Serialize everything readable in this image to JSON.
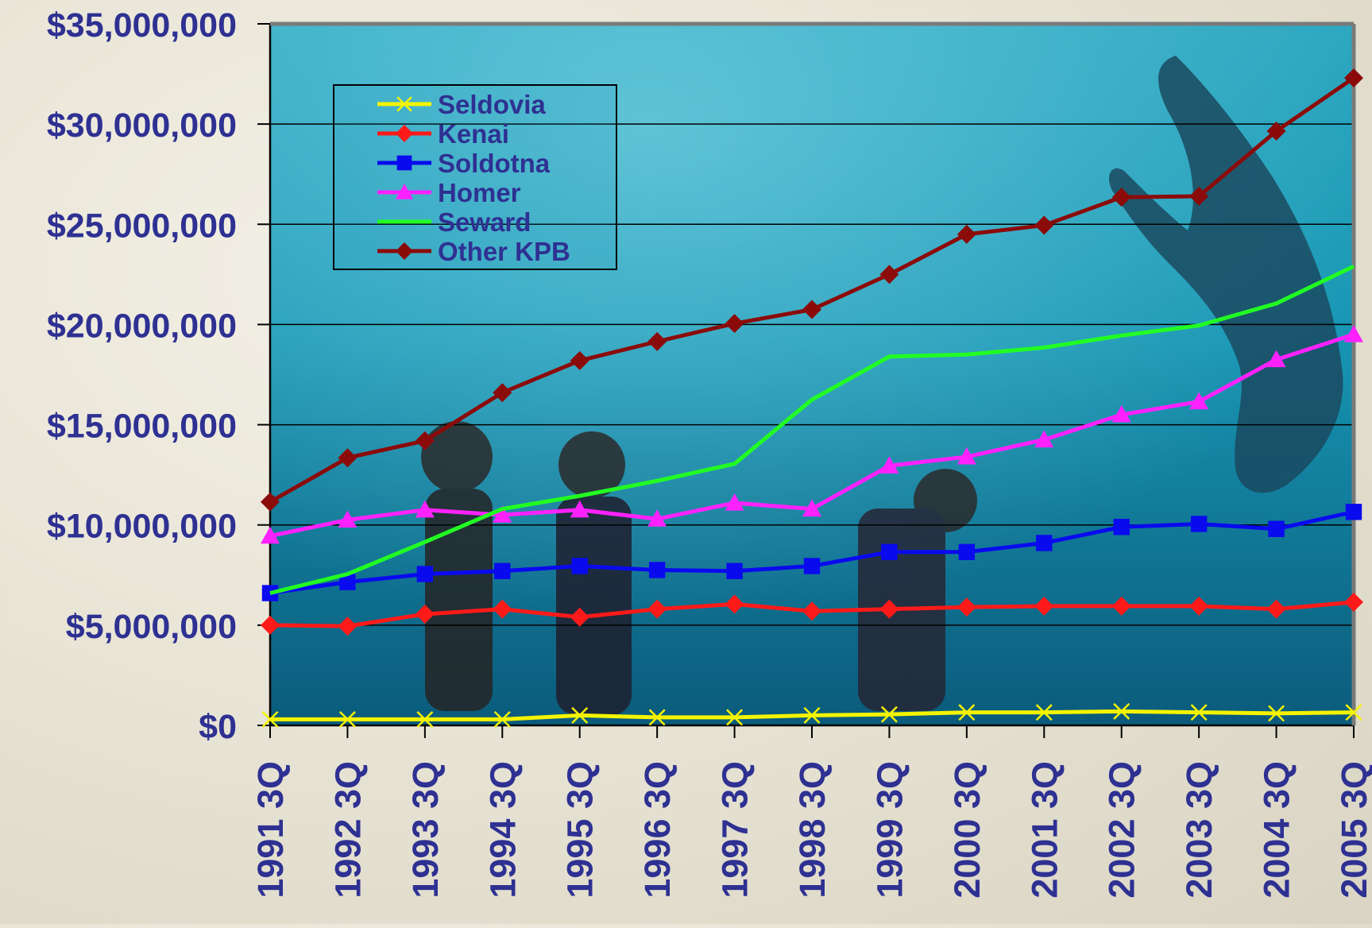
{
  "chart_data": {
    "type": "line",
    "title": "",
    "xlabel": "",
    "ylabel": "",
    "ylim": [
      0,
      35000000
    ],
    "y_ticks": [
      0,
      5000000,
      10000000,
      15000000,
      20000000,
      25000000,
      30000000,
      35000000
    ],
    "y_tick_labels": [
      "$0",
      "$5,000,000",
      "$10,000,000",
      "$15,000,000",
      "$20,000,000",
      "$25,000,000",
      "$30,000,000",
      "$35,000,000"
    ],
    "grid": true,
    "legend_position": "top-left",
    "categories": [
      "1991 3Q",
      "1992 3Q",
      "1993 3Q",
      "1994 3Q",
      "1995 3Q",
      "1996 3Q",
      "1997 3Q",
      "1998 3Q",
      "1999 3Q",
      "2000 3Q",
      "2001 3Q",
      "2002 3Q",
      "2003 3Q",
      "2004 3Q",
      "2005 3Q"
    ],
    "series": [
      {
        "name": "Seldovia",
        "color": "#f4f400",
        "marker": "x",
        "values": [
          300000,
          300000,
          300000,
          300000,
          500000,
          400000,
          400000,
          500000,
          550000,
          650000,
          650000,
          700000,
          650000,
          600000,
          650000
        ]
      },
      {
        "name": "Kenai",
        "color": "#ff1a1a",
        "marker": "diamond",
        "values": [
          5000000,
          4950000,
          5550000,
          5800000,
          5400000,
          5800000,
          6050000,
          5700000,
          5800000,
          5900000,
          5950000,
          5950000,
          5950000,
          5800000,
          6150000
        ]
      },
      {
        "name": "Soldotna",
        "color": "#0a0aee",
        "marker": "square",
        "values": [
          6600000,
          7150000,
          7550000,
          7700000,
          7950000,
          7750000,
          7700000,
          7950000,
          8650000,
          8650000,
          9100000,
          9900000,
          10050000,
          9800000,
          10650000
        ]
      },
      {
        "name": "Homer",
        "color": "#ff22ff",
        "marker": "triangle",
        "values": [
          9450000,
          10250000,
          10750000,
          10500000,
          10750000,
          10300000,
          11100000,
          10800000,
          12950000,
          13400000,
          14250000,
          15500000,
          16150000,
          18250000,
          19500000
        ]
      },
      {
        "name": "Seward",
        "color": "#22ff22",
        "marker": "none",
        "values": [
          6600000,
          7550000,
          9150000,
          10800000,
          11450000,
          12200000,
          13050000,
          16250000,
          18400000,
          18500000,
          18850000,
          19450000,
          19950000,
          21050000,
          22900000
        ]
      },
      {
        "name": "Other KPB",
        "color": "#8b0a0a",
        "marker": "diamond",
        "values": [
          11150000,
          13350000,
          14200000,
          16600000,
          18200000,
          19150000,
          20050000,
          20750000,
          22500000,
          24500000,
          24950000,
          26350000,
          26400000,
          29650000,
          32300000
        ]
      }
    ]
  }
}
